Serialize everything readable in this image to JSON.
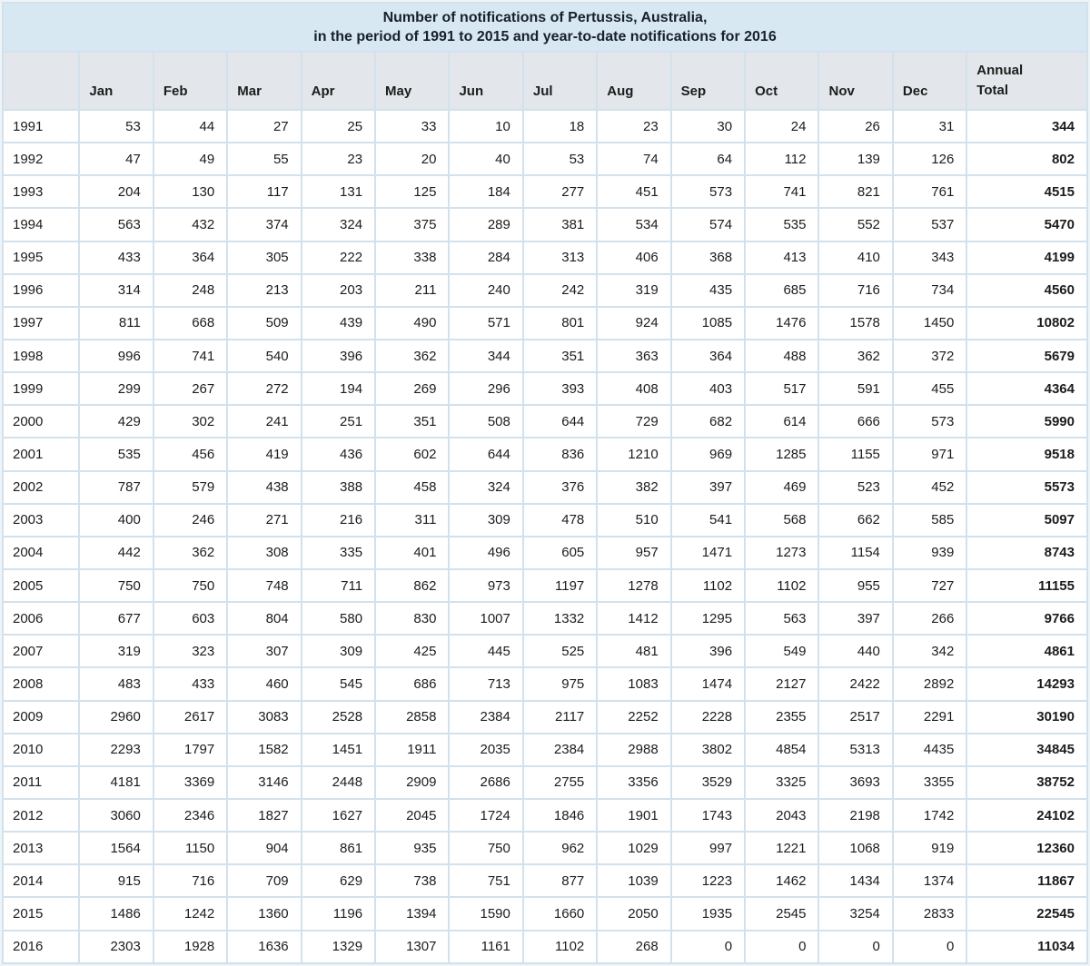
{
  "title": {
    "line1": "Number of notifications of Pertussis, Australia,",
    "line2": "in the period of 1991 to 2015 and year-to-date notifications for 2016"
  },
  "chart_data": {
    "type": "table",
    "title": "Number of notifications of Pertussis, Australia, in the period of 1991 to 2015 and year-to-date notifications for 2016",
    "columns": [
      "",
      "Jan",
      "Feb",
      "Mar",
      "Apr",
      "May",
      "Jun",
      "Jul",
      "Aug",
      "Sep",
      "Oct",
      "Nov",
      "Dec",
      "Annual Total"
    ],
    "rows": [
      [
        "1991",
        53,
        44,
        27,
        25,
        33,
        10,
        18,
        23,
        30,
        24,
        26,
        31,
        344
      ],
      [
        "1992",
        47,
        49,
        55,
        23,
        20,
        40,
        53,
        74,
        64,
        112,
        139,
        126,
        802
      ],
      [
        "1993",
        204,
        130,
        117,
        131,
        125,
        184,
        277,
        451,
        573,
        741,
        821,
        761,
        4515
      ],
      [
        "1994",
        563,
        432,
        374,
        324,
        375,
        289,
        381,
        534,
        574,
        535,
        552,
        537,
        5470
      ],
      [
        "1995",
        433,
        364,
        305,
        222,
        338,
        284,
        313,
        406,
        368,
        413,
        410,
        343,
        4199
      ],
      [
        "1996",
        314,
        248,
        213,
        203,
        211,
        240,
        242,
        319,
        435,
        685,
        716,
        734,
        4560
      ],
      [
        "1997",
        811,
        668,
        509,
        439,
        490,
        571,
        801,
        924,
        1085,
        1476,
        1578,
        1450,
        10802
      ],
      [
        "1998",
        996,
        741,
        540,
        396,
        362,
        344,
        351,
        363,
        364,
        488,
        362,
        372,
        5679
      ],
      [
        "1999",
        299,
        267,
        272,
        194,
        269,
        296,
        393,
        408,
        403,
        517,
        591,
        455,
        4364
      ],
      [
        "2000",
        429,
        302,
        241,
        251,
        351,
        508,
        644,
        729,
        682,
        614,
        666,
        573,
        5990
      ],
      [
        "2001",
        535,
        456,
        419,
        436,
        602,
        644,
        836,
        1210,
        969,
        1285,
        1155,
        971,
        9518
      ],
      [
        "2002",
        787,
        579,
        438,
        388,
        458,
        324,
        376,
        382,
        397,
        469,
        523,
        452,
        5573
      ],
      [
        "2003",
        400,
        246,
        271,
        216,
        311,
        309,
        478,
        510,
        541,
        568,
        662,
        585,
        5097
      ],
      [
        "2004",
        442,
        362,
        308,
        335,
        401,
        496,
        605,
        957,
        1471,
        1273,
        1154,
        939,
        8743
      ],
      [
        "2005",
        750,
        750,
        748,
        711,
        862,
        973,
        1197,
        1278,
        1102,
        1102,
        955,
        727,
        11155
      ],
      [
        "2006",
        677,
        603,
        804,
        580,
        830,
        1007,
        1332,
        1412,
        1295,
        563,
        397,
        266,
        9766
      ],
      [
        "2007",
        319,
        323,
        307,
        309,
        425,
        445,
        525,
        481,
        396,
        549,
        440,
        342,
        4861
      ],
      [
        "2008",
        483,
        433,
        460,
        545,
        686,
        713,
        975,
        1083,
        1474,
        2127,
        2422,
        2892,
        14293
      ],
      [
        "2009",
        2960,
        2617,
        3083,
        2528,
        2858,
        2384,
        2117,
        2252,
        2228,
        2355,
        2517,
        2291,
        30190
      ],
      [
        "2010",
        2293,
        1797,
        1582,
        1451,
        1911,
        2035,
        2384,
        2988,
        3802,
        4854,
        5313,
        4435,
        34845
      ],
      [
        "2011",
        4181,
        3369,
        3146,
        2448,
        2909,
        2686,
        2755,
        3356,
        3529,
        3325,
        3693,
        3355,
        38752
      ],
      [
        "2012",
        3060,
        2346,
        1827,
        1627,
        2045,
        1724,
        1846,
        1901,
        1743,
        2043,
        2198,
        1742,
        24102
      ],
      [
        "2013",
        1564,
        1150,
        904,
        861,
        935,
        750,
        962,
        1029,
        997,
        1221,
        1068,
        919,
        12360
      ],
      [
        "2014",
        915,
        716,
        709,
        629,
        738,
        751,
        877,
        1039,
        1223,
        1462,
        1434,
        1374,
        11867
      ],
      [
        "2015",
        1486,
        1242,
        1360,
        1196,
        1394,
        1590,
        1660,
        2050,
        1935,
        2545,
        3254,
        2833,
        22545
      ],
      [
        "2016",
        2303,
        1928,
        1636,
        1329,
        1307,
        1161,
        1102,
        268,
        0,
        0,
        0,
        0,
        11034
      ]
    ],
    "layout_hints": {
      "first_column": "year labels",
      "last_column": "bold annual totals",
      "grid": "on"
    }
  },
  "colors": {
    "title_bg": "#d8e8f3",
    "header_bg": "#e3e7eb",
    "cell_bg": "#ffffff",
    "grid": "#d2e1ec",
    "outer_bg": "#eef4f8",
    "text": "#1c1c1c"
  }
}
